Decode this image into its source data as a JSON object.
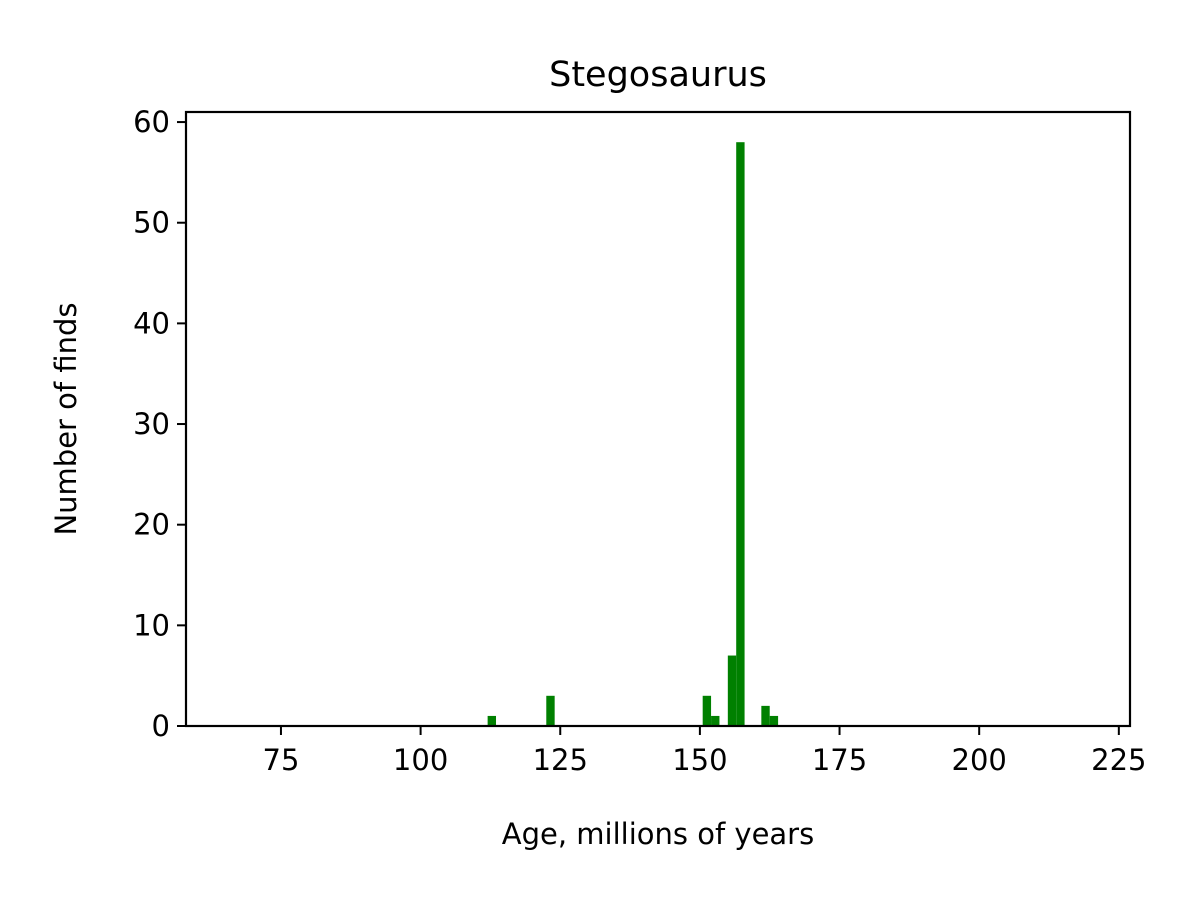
{
  "chart_data": {
    "type": "bar",
    "title": "Stegosaurus",
    "xlabel": "Age, millions of years",
    "ylabel": "Number of finds",
    "xlim": [
      58,
      227
    ],
    "ylim": [
      0,
      61
    ],
    "xticks": [
      75,
      100,
      125,
      150,
      175,
      200,
      225
    ],
    "yticks": [
      0,
      10,
      20,
      30,
      40,
      50,
      60
    ],
    "grid": false,
    "bar_color": "#008000",
    "bins": [
      {
        "x0": 112.0,
        "x1": 113.5,
        "value": 1
      },
      {
        "x0": 122.5,
        "x1": 124.0,
        "value": 3
      },
      {
        "x0": 150.5,
        "x1": 152.0,
        "value": 3
      },
      {
        "x0": 152.0,
        "x1": 153.5,
        "value": 1
      },
      {
        "x0": 155.0,
        "x1": 156.5,
        "value": 7
      },
      {
        "x0": 156.5,
        "x1": 158.0,
        "value": 58
      },
      {
        "x0": 161.0,
        "x1": 162.5,
        "value": 2
      },
      {
        "x0": 162.5,
        "x1": 164.0,
        "value": 1
      }
    ]
  }
}
